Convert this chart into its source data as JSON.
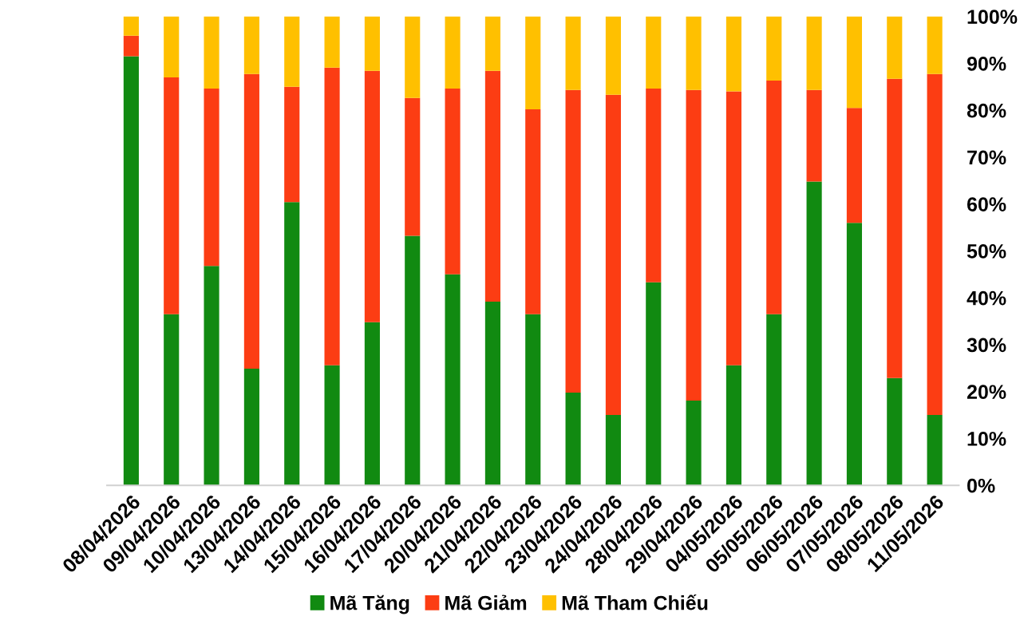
{
  "chart_data": {
    "type": "bar",
    "stacked": true,
    "categories": [
      "08/04/2026",
      "09/04/2026",
      "10/04/2026",
      "13/04/2026",
      "14/04/2026",
      "15/04/2026",
      "16/04/2026",
      "17/04/2026",
      "20/04/2026",
      "21/04/2026",
      "22/04/2026",
      "23/04/2026",
      "24/04/2026",
      "28/04/2026",
      "29/04/2026",
      "04/05/2026",
      "05/05/2026",
      "06/05/2026",
      "07/05/2026",
      "08/05/2026",
      "11/05/2026"
    ],
    "series": [
      {
        "name": "Mã Tăng",
        "color": "#118a11",
        "values": [
          91.5,
          36.5,
          46.8,
          24.9,
          60.4,
          25.6,
          34.8,
          53.2,
          45,
          39.2,
          36.5,
          19.8,
          15,
          43.3,
          18.1,
          25.6,
          36.5,
          64.8,
          56,
          22.9,
          15
        ]
      },
      {
        "name": "Mã Giảm",
        "color": "#fc3d13",
        "values": [
          4.4,
          50.5,
          37.8,
          62.8,
          24.6,
          63.5,
          53.6,
          29.4,
          39.6,
          49.2,
          43.7,
          64.5,
          68.3,
          41.3,
          66.2,
          58.4,
          49.8,
          19.5,
          24.5,
          63.8,
          72.7
        ]
      },
      {
        "name": "Mã Tham Chiếu",
        "color": "#ffc000",
        "values": [
          4.1,
          13,
          15.4,
          12.3,
          15,
          10.9,
          11.6,
          17.4,
          15.4,
          11.6,
          19.8,
          15.7,
          16.7,
          15.4,
          15.7,
          16,
          13.7,
          15.7,
          19.5,
          13.3,
          12.3
        ]
      }
    ],
    "ylim": [
      0,
      100
    ],
    "yticks": [
      {
        "value": 0,
        "label": "0%"
      },
      {
        "value": 10,
        "label": "10%"
      },
      {
        "value": 20,
        "label": "20%"
      },
      {
        "value": 30,
        "label": "30%"
      },
      {
        "value": 40,
        "label": "40%"
      },
      {
        "value": 50,
        "label": "50%"
      },
      {
        "value": 60,
        "label": "60%"
      },
      {
        "value": 70,
        "label": "70%"
      },
      {
        "value": 80,
        "label": "80%"
      },
      {
        "value": 90,
        "label": "90%"
      },
      {
        "value": 100,
        "label": "100%"
      }
    ],
    "grid": false,
    "legend": "bottom"
  }
}
